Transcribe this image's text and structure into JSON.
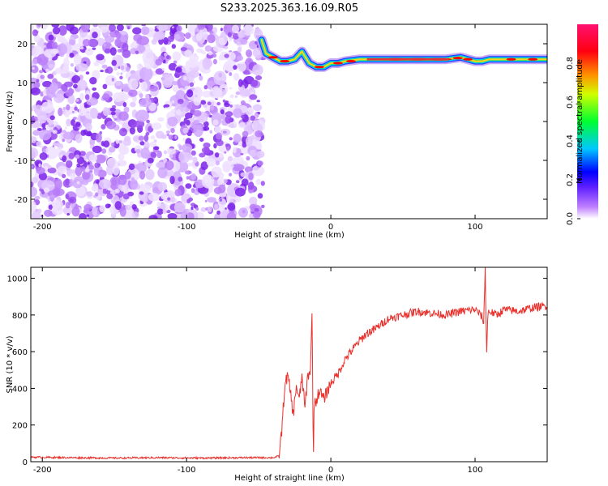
{
  "title": "S233.2025.363.16.09.R05",
  "colors": {
    "snr_line": "#e8302c",
    "speckle": "#7a22e8",
    "ridge_core": "#e8303a"
  },
  "chart_data": [
    {
      "type": "heatmap",
      "name": "spectrogram",
      "xlabel": "Height of straight line (km)",
      "ylabel": "Frequency (Hz)",
      "xlim": [
        -208,
        150
      ],
      "ylim": [
        -25,
        25
      ],
      "xticks": [
        -200,
        -100,
        0,
        100
      ],
      "xtick_labels": [
        "-200",
        "-100",
        "0",
        "100"
      ],
      "yticks": [
        20,
        10,
        0,
        -10,
        -20
      ],
      "ytick_labels": [
        "20",
        "10",
        "0",
        "-10",
        "-20"
      ],
      "noise_region_x": [
        -208,
        -47
      ],
      "ridge": {
        "x": [
          -48,
          -45,
          -40,
          -35,
          -30,
          -25,
          -20,
          -15,
          -10,
          -5,
          0,
          5,
          10,
          20,
          30,
          40,
          50,
          60,
          70,
          80,
          90,
          95,
          100,
          105,
          110,
          120,
          130,
          140,
          150
        ],
        "freq": [
          21,
          17.5,
          16.5,
          15.5,
          15.5,
          16,
          18,
          15,
          14,
          14,
          15,
          15,
          15.5,
          16,
          16,
          16,
          16,
          16,
          16,
          16,
          16.5,
          16,
          15.5,
          15.5,
          16,
          16,
          16,
          16,
          16
        ]
      },
      "colorbar": {
        "label": "Normalized spectral amplitude",
        "range": [
          0,
          1
        ],
        "ticks": [
          0.0,
          0.2,
          0.4,
          0.6,
          0.8
        ],
        "tick_labels": [
          "0.0",
          "0.2",
          "0.4",
          "0.6",
          "0.8"
        ],
        "colors": [
          "#ffffff",
          "#a040ff",
          "#0000ff",
          "#00d0ff",
          "#00ff20",
          "#ffff00",
          "#ff8000",
          "#ff0000",
          "#ff0060"
        ]
      }
    },
    {
      "type": "line",
      "name": "snr",
      "xlabel": "Height of straight line (km)",
      "ylabel": "SNR (10 * v/v)",
      "xlim": [
        -208,
        150
      ],
      "ylim": [
        0,
        1060
      ],
      "xticks": [
        -200,
        -100,
        0,
        100
      ],
      "xtick_labels": [
        "-200",
        "-100",
        "0",
        "100"
      ],
      "yticks": [
        0,
        200,
        400,
        600,
        800,
        1000
      ],
      "ytick_labels": [
        "0",
        "200",
        "400",
        "600",
        "800",
        "1000"
      ],
      "series": [
        {
          "name": "SNR",
          "x": [
            -208,
            -180,
            -150,
            -120,
            -90,
            -60,
            -40,
            -36,
            -34,
            -32,
            -30,
            -28,
            -26,
            -24,
            -22,
            -20,
            -18,
            -16,
            -14,
            -13,
            -12.5,
            -12,
            -11.5,
            -10,
            -8,
            -5,
            0,
            5,
            10,
            15,
            20,
            25,
            30,
            35,
            40,
            50,
            60,
            70,
            80,
            90,
            100,
            105,
            106,
            107,
            108,
            109,
            110,
            115,
            120,
            130,
            140,
            150
          ],
          "y": [
            25,
            22,
            20,
            22,
            20,
            22,
            22,
            30,
            170,
            410,
            470,
            380,
            250,
            420,
            330,
            470,
            290,
            470,
            500,
            860,
            300,
            40,
            340,
            330,
            390,
            340,
            430,
            480,
            560,
            610,
            660,
            700,
            720,
            750,
            780,
            800,
            820,
            810,
            800,
            820,
            830,
            790,
            750,
            1060,
            590,
            820,
            820,
            800,
            830,
            820,
            840,
            850
          ]
        }
      ]
    }
  ]
}
